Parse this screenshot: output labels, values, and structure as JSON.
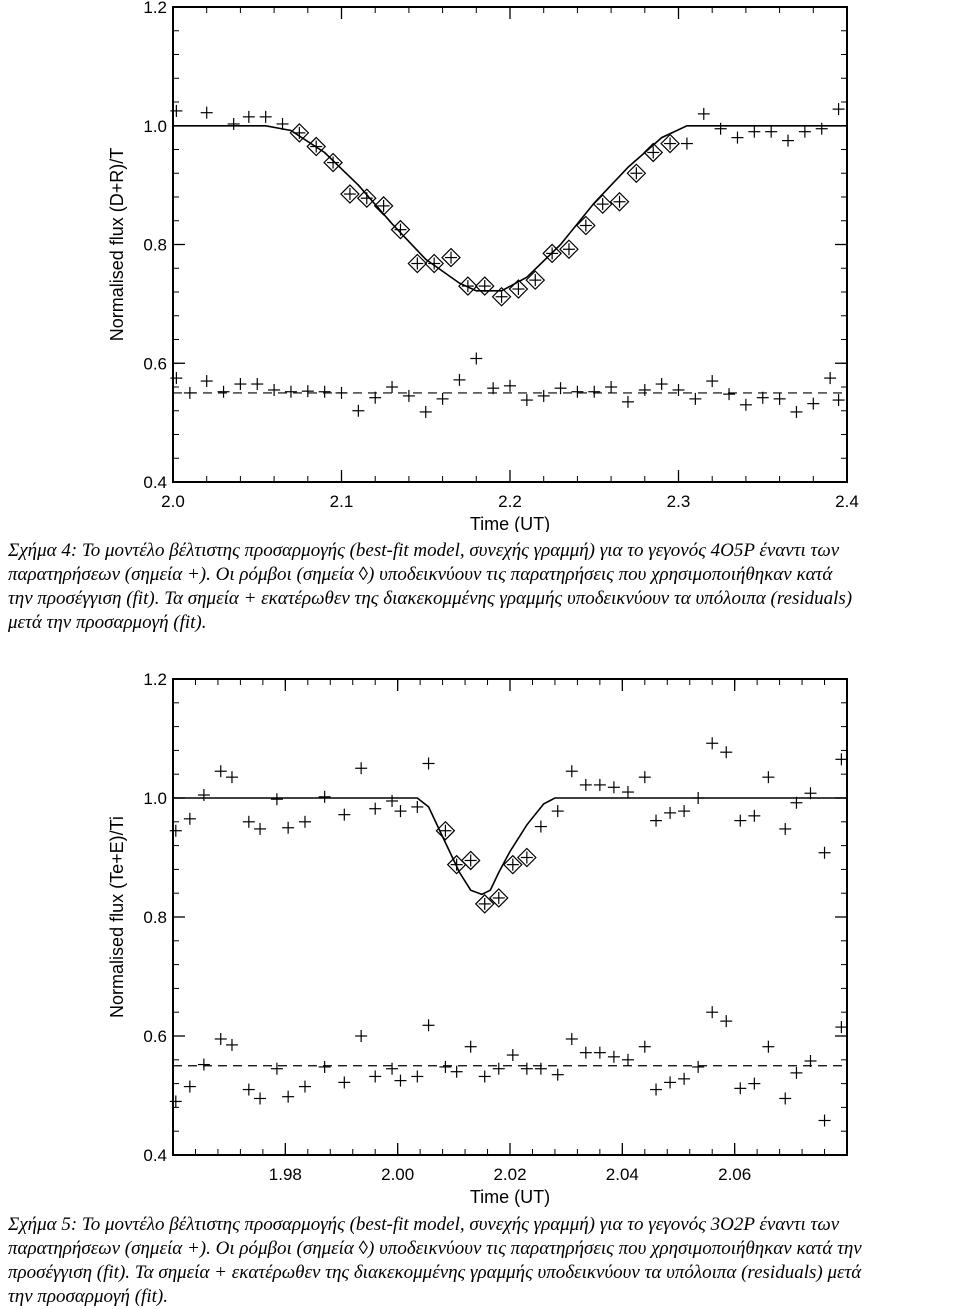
{
  "chart_data": [
    {
      "type": "scatter",
      "xlabel": "Time (UT)",
      "ylabel": "Normalised flux (D+R)/T",
      "xlim": [
        2.0,
        2.4
      ],
      "ylim": [
        0.4,
        1.2
      ],
      "xticks": [
        "2.0",
        "2.1",
        "2.2",
        "2.3",
        "2.4"
      ],
      "yticks": [
        "0.4",
        "0.6",
        "0.8",
        "1.0",
        "1.2"
      ],
      "fit_line": {
        "x": [
          2.0,
          2.055,
          2.07,
          2.09,
          2.11,
          2.13,
          2.15,
          2.17,
          2.18,
          2.195,
          2.21,
          2.23,
          2.25,
          2.27,
          2.29,
          2.305,
          2.31,
          2.4
        ],
        "y": [
          1.0,
          1.0,
          0.992,
          0.955,
          0.9,
          0.835,
          0.775,
          0.735,
          0.722,
          0.722,
          0.745,
          0.8,
          0.87,
          0.93,
          0.98,
          1.0,
          1.0,
          1.0
        ]
      },
      "residual_baseline": 0.55,
      "observations_plus": {
        "x": [
          2.002,
          2.02,
          2.036,
          2.045,
          2.055,
          2.065,
          2.075,
          2.085,
          2.095,
          2.105,
          2.115,
          2.125,
          2.135,
          2.145,
          2.155,
          2.165,
          2.175,
          2.185,
          2.195,
          2.205,
          2.215,
          2.225,
          2.235,
          2.245,
          2.255,
          2.265,
          2.275,
          2.285,
          2.295,
          2.305,
          2.315,
          2.325,
          2.335,
          2.345,
          2.355,
          2.365,
          2.375,
          2.385,
          2.395
        ],
        "y": [
          1.025,
          1.022,
          1.003,
          1.015,
          1.015,
          1.003,
          0.988,
          0.965,
          0.938,
          0.885,
          0.878,
          0.865,
          0.825,
          0.768,
          0.768,
          0.778,
          0.73,
          0.73,
          0.712,
          0.725,
          0.74,
          0.785,
          0.792,
          0.832,
          0.868,
          0.872,
          0.92,
          0.955,
          0.97,
          0.97,
          1.02,
          0.995,
          0.98,
          0.99,
          0.99,
          0.975,
          0.99,
          0.995,
          1.028
        ]
      },
      "observations_diamond": {
        "x": [
          2.075,
          2.085,
          2.095,
          2.105,
          2.115,
          2.125,
          2.135,
          2.145,
          2.155,
          2.165,
          2.175,
          2.185,
          2.195,
          2.205,
          2.215,
          2.225,
          2.235,
          2.245,
          2.255,
          2.265,
          2.275,
          2.285,
          2.295
        ],
        "y": [
          0.988,
          0.965,
          0.938,
          0.885,
          0.878,
          0.865,
          0.825,
          0.768,
          0.768,
          0.778,
          0.73,
          0.73,
          0.712,
          0.725,
          0.74,
          0.785,
          0.792,
          0.832,
          0.868,
          0.872,
          0.92,
          0.955,
          0.97
        ]
      },
      "residuals_plus": {
        "x": [
          2.002,
          2.01,
          2.02,
          2.03,
          2.04,
          2.05,
          2.06,
          2.07,
          2.08,
          2.09,
          2.1,
          2.11,
          2.12,
          2.13,
          2.14,
          2.15,
          2.16,
          2.17,
          2.18,
          2.19,
          2.2,
          2.21,
          2.22,
          2.23,
          2.24,
          2.25,
          2.26,
          2.27,
          2.28,
          2.29,
          2.3,
          2.31,
          2.32,
          2.33,
          2.34,
          2.35,
          2.36,
          2.37,
          2.38,
          2.39,
          2.395
        ],
        "y": [
          0.575,
          0.55,
          0.57,
          0.552,
          0.565,
          0.565,
          0.555,
          0.552,
          0.553,
          0.552,
          0.55,
          0.52,
          0.542,
          0.56,
          0.545,
          0.518,
          0.54,
          0.572,
          0.608,
          0.558,
          0.562,
          0.538,
          0.545,
          0.558,
          0.552,
          0.552,
          0.56,
          0.535,
          0.555,
          0.565,
          0.555,
          0.54,
          0.57,
          0.548,
          0.53,
          0.542,
          0.54,
          0.518,
          0.532,
          0.575,
          0.538
        ]
      }
    },
    {
      "type": "scatter",
      "xlabel": "Time (UT)",
      "ylabel": "Normalised flux (Te+E)/Ti",
      "xlim": [
        1.96,
        2.08
      ],
      "ylim": [
        0.4,
        1.2
      ],
      "xticks": [
        "1.98",
        "2.00",
        "2.02",
        "2.04",
        "2.06"
      ],
      "yticks": [
        "0.4",
        "0.6",
        "0.8",
        "1.0",
        "1.2"
      ],
      "fit_line": {
        "x": [
          1.96,
          2.0035,
          2.0055,
          2.0085,
          2.011,
          2.013,
          2.015,
          2.0165,
          2.018,
          2.02,
          2.023,
          2.026,
          2.028,
          2.08
        ],
        "y": [
          1.0,
          1.0,
          0.985,
          0.925,
          0.875,
          0.845,
          0.838,
          0.845,
          0.875,
          0.91,
          0.955,
          0.99,
          1.0,
          1.0
        ]
      },
      "residual_baseline": 0.55,
      "observations_plus": {
        "x": [
          1.9605,
          1.963,
          1.9655,
          1.9685,
          1.9705,
          1.9735,
          1.9755,
          1.9785,
          1.9805,
          1.9835,
          1.987,
          1.9905,
          1.9935,
          1.996,
          1.999,
          2.0005,
          2.0035,
          2.0055,
          2.0085,
          2.0105,
          2.013,
          2.0155,
          2.018,
          2.0205,
          2.023,
          2.0255,
          2.0285,
          2.031,
          2.0335,
          2.036,
          2.0385,
          2.041,
          2.044,
          2.046,
          2.0485,
          2.051,
          2.0535,
          2.056,
          2.0585,
          2.061,
          2.0635,
          2.066,
          2.069,
          2.071,
          2.0735,
          2.076,
          2.079
        ],
        "y": [
          0.945,
          0.965,
          1.005,
          1.045,
          1.035,
          0.96,
          0.948,
          0.998,
          0.95,
          0.96,
          1.002,
          0.972,
          1.05,
          0.982,
          0.995,
          0.978,
          0.985,
          1.058,
          0.945,
          0.888,
          0.895,
          0.822,
          0.832,
          0.888,
          0.9,
          0.952,
          0.978,
          1.045,
          1.022,
          1.022,
          1.018,
          1.01,
          1.035,
          0.962,
          0.975,
          0.978,
          1.0,
          1.092,
          1.077,
          0.962,
          0.97,
          1.035,
          0.948,
          0.992,
          1.008,
          0.908,
          1.065
        ]
      },
      "observations_diamond": {
        "x": [
          2.0085,
          2.0105,
          2.013,
          2.0155,
          2.018,
          2.0205,
          2.023
        ],
        "y": [
          0.945,
          0.888,
          0.895,
          0.822,
          0.832,
          0.888,
          0.9
        ]
      },
      "residuals_plus": {
        "x": [
          1.9605,
          1.963,
          1.9655,
          1.9685,
          1.9705,
          1.9735,
          1.9755,
          1.9785,
          1.9805,
          1.9835,
          1.987,
          1.9905,
          1.9935,
          1.996,
          1.999,
          2.0005,
          2.0035,
          2.0055,
          2.0085,
          2.0105,
          2.013,
          2.0155,
          2.018,
          2.0205,
          2.023,
          2.0255,
          2.0285,
          2.031,
          2.0335,
          2.036,
          2.0385,
          2.041,
          2.044,
          2.046,
          2.0485,
          2.051,
          2.0535,
          2.056,
          2.0585,
          2.061,
          2.0635,
          2.066,
          2.069,
          2.071,
          2.0735,
          2.076,
          2.079
        ],
        "y": [
          0.49,
          0.515,
          0.552,
          0.595,
          0.585,
          0.51,
          0.495,
          0.545,
          0.498,
          0.515,
          0.548,
          0.522,
          0.6,
          0.532,
          0.545,
          0.525,
          0.532,
          0.618,
          0.548,
          0.54,
          0.582,
          0.532,
          0.545,
          0.568,
          0.545,
          0.545,
          0.535,
          0.595,
          0.572,
          0.572,
          0.565,
          0.56,
          0.582,
          0.51,
          0.522,
          0.528,
          0.548,
          0.64,
          0.625,
          0.512,
          0.52,
          0.582,
          0.495,
          0.538,
          0.558,
          0.458,
          0.615
        ]
      }
    }
  ],
  "captions": [
    {
      "lines": [
        "Σχήμα 4: Το μοντέλο βέλτιστης προσαρμογής (best-fit model, συνεχής γραμμή) για το γεγονός 4O5P έναντι των",
        "παρατηρήσεων (σημεία +). Οι ρόμβοι (σημεία ◊) υποδεικνύουν τις παρατηρήσεις που χρησιμοποιήθηκαν κατά",
        "την προσέγγιση (fit). Τα σημεία + εκατέρωθεν της διακεκομμένης γραμμής υποδεικνύουν τα υπόλοιπα (residuals)",
        "μετά την προσαρμογή (fit)."
      ]
    },
    {
      "lines": [
        "Σχήμα 5: Το μοντέλο βέλτιστης προσαρμογής (best-fit model, συνεχής γραμμή) για το γεγονός 3O2P έναντι των",
        "παρατηρήσεων (σημεία +). Οι ρόμβοι (σημεία ◊) υποδεικνύουν τις παρατηρήσεις που χρησιμοποιήθηκαν κατά την",
        "προσέγγιση (fit). Τα σημεία + εκατέρωθεν της διακεκομμένης γραμμής υποδεικνύουν τα υπόλοιπα (residuals) μετά",
        "την προσαρμογή (fit)."
      ]
    }
  ]
}
